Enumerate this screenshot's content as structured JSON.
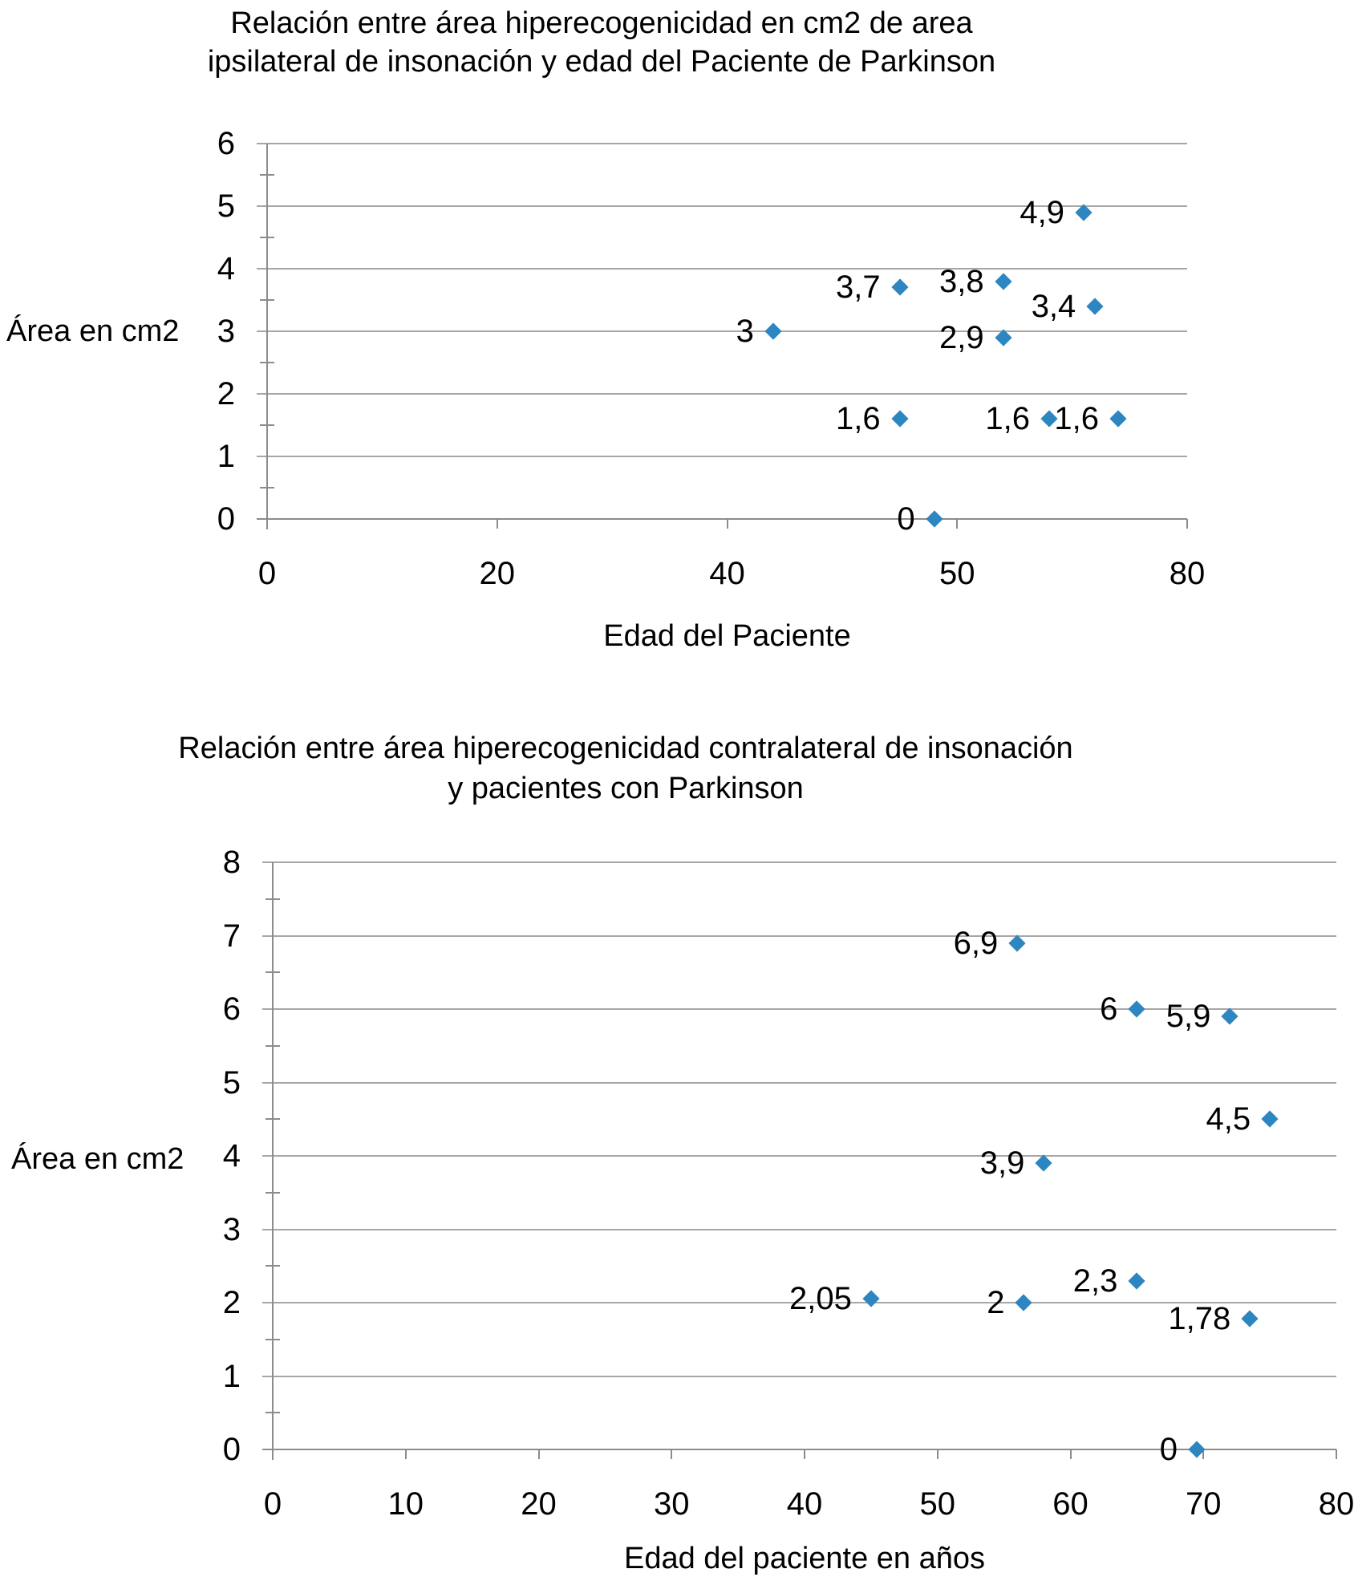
{
  "colors": {
    "background": "#FFFFFF",
    "marker": "#2E86C1",
    "gridline": "#A6A6A6",
    "axis": "#8C8C8C",
    "text": "#000000"
  },
  "chart_data": [
    {
      "type": "scatter",
      "title": "Relación entre área hiperecogenicidad en cm2 de area ipsilateral de insonación y edad del Paciente de Parkinson",
      "title_lines": [
        "Relación entre área hiperecogenicidad  en cm2 de area",
        "ipsilateral de insonación y edad del Paciente de Parkinson"
      ],
      "xlabel": "Edad del Paciente",
      "ylabel": "Área en cm2",
      "x_tick_labels": [
        "0",
        "20",
        "40",
        "50",
        "80"
      ],
      "x_tick_values": [
        0,
        20,
        40,
        50,
        80
      ],
      "x_axis_note": "tick labels evenly spaced (non-linear axis)",
      "y_ticks": [
        "0",
        "1",
        "2",
        "3",
        "4",
        "5",
        "6"
      ],
      "ylim": [
        0,
        6
      ],
      "xlim": [
        0,
        80
      ],
      "grid": "horizontal",
      "legend": "none",
      "marker_shape": "diamond",
      "points": [
        {
          "x": 42,
          "y": 3,
          "label": "3"
        },
        {
          "x": 47.5,
          "y": 3.7,
          "label": "3,7"
        },
        {
          "x": 47.5,
          "y": 1.6,
          "label": "1,6"
        },
        {
          "x": 49,
          "y": 0,
          "label": "0"
        },
        {
          "x": 56,
          "y": 3.8,
          "label": "3,8"
        },
        {
          "x": 56,
          "y": 2.9,
          "label": "2,9"
        },
        {
          "x": 62,
          "y": 1.6,
          "label": "1,6"
        },
        {
          "x": 66.5,
          "y": 4.9,
          "label": "4,9"
        },
        {
          "x": 68,
          "y": 3.4,
          "label": "3,4"
        },
        {
          "x": 71,
          "y": 1.6,
          "label": "1,6"
        }
      ]
    },
    {
      "type": "scatter",
      "title": "Relación entre área hiperecogenicidad contralateral de insonación y pacientes con Parkinson",
      "title_lines": [
        "Relación entre área hiperecogenicidad contralateral de insonación",
        "y pacientes con Parkinson"
      ],
      "xlabel": "Edad del paciente en años",
      "ylabel": "Área en cm2",
      "x_tick_labels": [
        "0",
        "10",
        "20",
        "30",
        "40",
        "50",
        "60",
        "70",
        "80"
      ],
      "x_tick_values": [
        0,
        10,
        20,
        30,
        40,
        50,
        60,
        70,
        80
      ],
      "y_ticks": [
        "0",
        "1",
        "2",
        "3",
        "4",
        "5",
        "6",
        "7",
        "8"
      ],
      "ylim": [
        0,
        8
      ],
      "xlim": [
        0,
        80
      ],
      "grid": "horizontal",
      "legend": "none",
      "marker_shape": "diamond",
      "points": [
        {
          "x": 45,
          "y": 2.05,
          "label": "2,05"
        },
        {
          "x": 56,
          "y": 6.9,
          "label": "6,9"
        },
        {
          "x": 56.5,
          "y": 2,
          "label": "2"
        },
        {
          "x": 58,
          "y": 3.9,
          "label": "3,9"
        },
        {
          "x": 65,
          "y": 6,
          "label": "6"
        },
        {
          "x": 65,
          "y": 2.3,
          "label": "2,3"
        },
        {
          "x": 69.5,
          "y": 0,
          "label": "0"
        },
        {
          "x": 72,
          "y": 5.9,
          "label": "5,9"
        },
        {
          "x": 73.5,
          "y": 1.78,
          "label": "1,78"
        },
        {
          "x": 75,
          "y": 4.5,
          "label": "4,5"
        }
      ]
    }
  ]
}
